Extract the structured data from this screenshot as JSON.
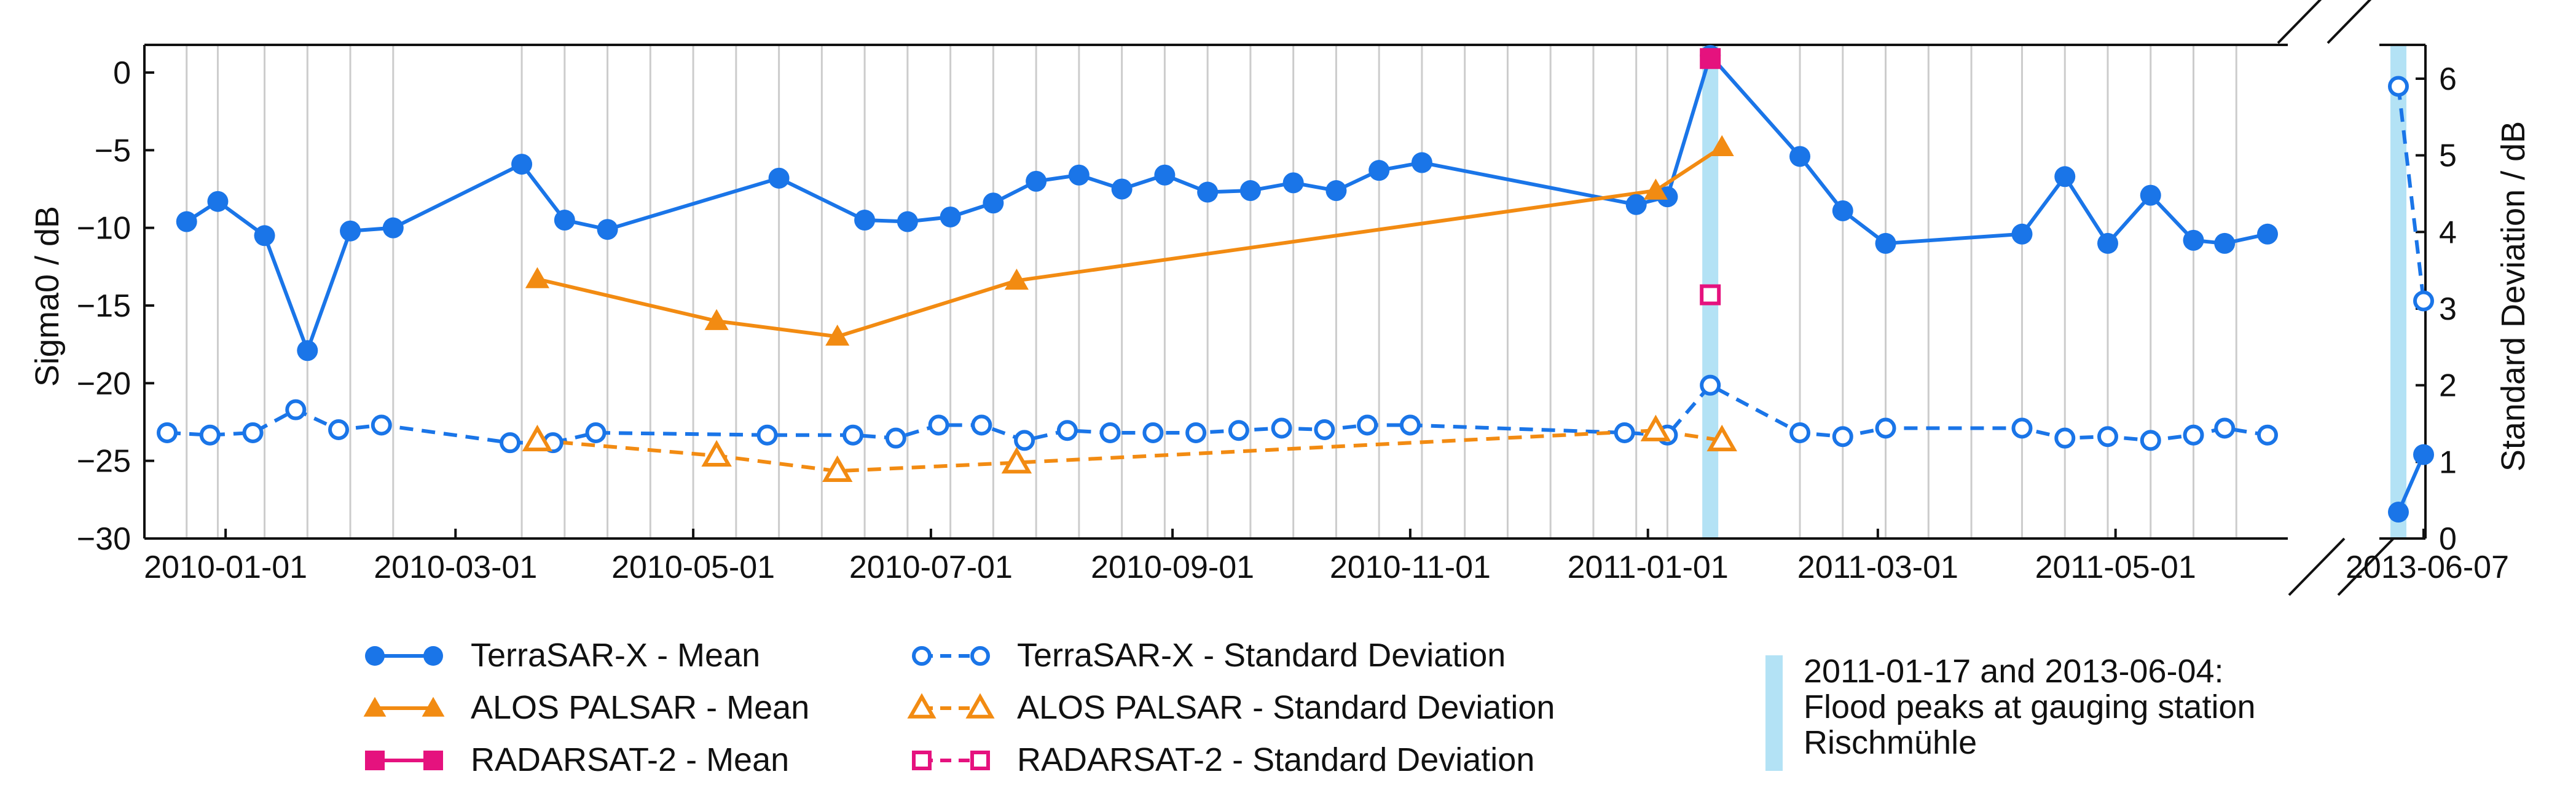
{
  "chart_data": {
    "type": "line",
    "title": "",
    "y_left_label": "Sigma0 / dB",
    "y_right_label": "Standard Deviation / dB",
    "y_left_lim": [
      -30,
      2
    ],
    "y_right_lim": [
      0,
      6.5
    ],
    "y_left_ticks": [
      "0",
      "−5",
      "−10",
      "−15",
      "−20",
      "−25",
      "−30"
    ],
    "y_left_tick_values": [
      0,
      -5,
      -10,
      -15,
      -20,
      -25,
      -30
    ],
    "y_right_ticks": [
      "0",
      "1",
      "2",
      "3",
      "4",
      "5",
      "6"
    ],
    "y_right_tick_values": [
      0,
      1,
      2,
      3,
      4,
      5,
      6
    ],
    "main_x_range": [
      "2009-12-17",
      "2011-06-09"
    ],
    "x_tick_labels": [
      "2010-01-01",
      "2010-03-01",
      "2010-05-01",
      "2010-07-01",
      "2010-09-01",
      "2010-11-01",
      "2011-01-01",
      "2011-03-01",
      "2011-05-01"
    ],
    "inset_x_range": [
      "2013-06-02",
      "2013-06-08"
    ],
    "inset_tick_label": "2013-06-07",
    "inset_tick_date": "2013-06-07",
    "series": [
      {
        "name": "TerraSAR-X - Mean",
        "axis": "left",
        "color": "#1a75e8",
        "marker": "circle-filled",
        "style": "solid",
        "points": [
          [
            "2009-12-22",
            -9.6
          ],
          [
            "2009-12-30",
            -8.3
          ],
          [
            "2010-01-11",
            -10.5
          ],
          [
            "2010-01-22",
            -17.9
          ],
          [
            "2010-02-02",
            -10.2
          ],
          [
            "2010-02-13",
            -10.0
          ],
          [
            "2010-03-18",
            -5.9
          ],
          [
            "2010-03-29",
            -9.5
          ],
          [
            "2010-04-09",
            -10.1
          ],
          [
            "2010-05-23",
            -6.8
          ],
          [
            "2010-06-14",
            -9.5
          ],
          [
            "2010-06-25",
            -9.6
          ],
          [
            "2010-07-06",
            -9.3
          ],
          [
            "2010-07-17",
            -8.4
          ],
          [
            "2010-07-28",
            -7.0
          ],
          [
            "2010-08-08",
            -6.6
          ],
          [
            "2010-08-19",
            -7.5
          ],
          [
            "2010-08-30",
            -6.6
          ],
          [
            "2010-09-10",
            -7.7
          ],
          [
            "2010-09-21",
            -7.6
          ],
          [
            "2010-10-02",
            -7.1
          ],
          [
            "2010-10-13",
            -7.6
          ],
          [
            "2010-10-24",
            -6.3
          ],
          [
            "2010-11-04",
            -5.8
          ],
          [
            "2010-12-29",
            -8.5
          ],
          [
            "2011-01-06",
            -8.0
          ],
          [
            "2011-01-17",
            1.1
          ],
          [
            "2011-02-09",
            -5.4
          ],
          [
            "2011-02-20",
            -8.9
          ],
          [
            "2011-03-03",
            -11.0
          ],
          [
            "2011-04-07",
            -10.4
          ],
          [
            "2011-04-18",
            -6.7
          ],
          [
            "2011-04-29",
            -11.0
          ],
          [
            "2011-05-10",
            -7.9
          ],
          [
            "2011-05-21",
            -10.8
          ],
          [
            "2011-05-29",
            -11.0
          ],
          [
            "2011-06-09",
            -10.4
          ]
        ],
        "inset_points": [
          [
            "2013-06-04",
            -28.3
          ],
          [
            "2013-06-07",
            -24.6
          ]
        ]
      },
      {
        "name": "TerraSAR-X - Standard Deviation",
        "axis": "right",
        "color": "#1a75e8",
        "marker": "circle-open",
        "style": "dashed",
        "points": [
          [
            "2009-12-17",
            1.38
          ],
          [
            "2009-12-28",
            1.35
          ],
          [
            "2010-01-08",
            1.38
          ],
          [
            "2010-01-19",
            1.68
          ],
          [
            "2010-01-30",
            1.42
          ],
          [
            "2010-02-10",
            1.48
          ],
          [
            "2010-03-15",
            1.25
          ],
          [
            "2010-03-26",
            1.25
          ],
          [
            "2010-04-06",
            1.38
          ],
          [
            "2010-05-20",
            1.35
          ],
          [
            "2010-06-11",
            1.35
          ],
          [
            "2010-06-22",
            1.31
          ],
          [
            "2010-07-03",
            1.48
          ],
          [
            "2010-07-14",
            1.48
          ],
          [
            "2010-07-25",
            1.28
          ],
          [
            "2010-08-05",
            1.41
          ],
          [
            "2010-08-16",
            1.38
          ],
          [
            "2010-08-27",
            1.38
          ],
          [
            "2010-09-07",
            1.38
          ],
          [
            "2010-09-18",
            1.41
          ],
          [
            "2010-09-29",
            1.44
          ],
          [
            "2010-10-10",
            1.42
          ],
          [
            "2010-10-21",
            1.48
          ],
          [
            "2010-11-01",
            1.48
          ],
          [
            "2010-12-26",
            1.38
          ],
          [
            "2011-01-06",
            1.35
          ],
          [
            "2011-01-17",
            2.0
          ],
          [
            "2011-02-09",
            1.38
          ],
          [
            "2011-02-20",
            1.33
          ],
          [
            "2011-03-03",
            1.44
          ],
          [
            "2011-04-07",
            1.44
          ],
          [
            "2011-04-18",
            1.31
          ],
          [
            "2011-04-29",
            1.33
          ],
          [
            "2011-05-10",
            1.28
          ],
          [
            "2011-05-21",
            1.35
          ],
          [
            "2011-05-29",
            1.44
          ],
          [
            "2011-06-09",
            1.35
          ]
        ],
        "inset_points": [
          [
            "2013-06-04",
            5.9
          ],
          [
            "2013-06-07",
            3.1
          ]
        ]
      },
      {
        "name": "ALOS PALSAR - Mean",
        "axis": "left",
        "color": "#f28b12",
        "marker": "triangle-filled",
        "style": "solid",
        "points": [
          [
            "2010-03-22",
            -13.3
          ],
          [
            "2010-05-07",
            -16.0
          ],
          [
            "2010-06-07",
            -17.0
          ],
          [
            "2010-07-23",
            -13.4
          ],
          [
            "2011-01-03",
            -7.6
          ],
          [
            "2011-01-20",
            -4.8
          ]
        ]
      },
      {
        "name": "ALOS PALSAR - Standard Deviation",
        "axis": "right",
        "color": "#f28b12",
        "marker": "triangle-open",
        "style": "dashed",
        "points": [
          [
            "2010-03-22",
            1.28
          ],
          [
            "2010-05-07",
            1.08
          ],
          [
            "2010-06-07",
            0.88
          ],
          [
            "2010-07-23",
            0.99
          ],
          [
            "2011-01-03",
            1.41
          ],
          [
            "2011-01-20",
            1.28
          ]
        ]
      },
      {
        "name": "RADARSAT-2 - Mean",
        "axis": "left",
        "color": "#e5127e",
        "marker": "square-filled",
        "style": "solid",
        "points": [
          [
            "2011-01-17",
            0.9
          ]
        ]
      },
      {
        "name": "RADARSAT-2 - Standard Deviation",
        "axis": "right",
        "color": "#e5127e",
        "marker": "square-open",
        "style": "dashed",
        "points": [
          [
            "2011-01-17",
            3.18
          ]
        ]
      }
    ],
    "acquisition_gridlines": [
      "2009-12-22",
      "2009-12-30",
      "2010-01-11",
      "2010-01-22",
      "2010-02-02",
      "2010-02-13",
      "2010-03-18",
      "2010-03-29",
      "2010-04-09",
      "2010-04-20",
      "2010-05-01",
      "2010-05-12",
      "2010-05-23",
      "2010-06-03",
      "2010-06-14",
      "2010-06-25",
      "2010-07-06",
      "2010-07-17",
      "2010-07-28",
      "2010-08-08",
      "2010-08-19",
      "2010-08-30",
      "2010-09-10",
      "2010-09-21",
      "2010-10-02",
      "2010-10-13",
      "2010-10-24",
      "2010-11-04",
      "2010-11-15",
      "2010-11-26",
      "2010-12-07",
      "2010-12-18",
      "2010-12-29",
      "2011-01-06",
      "2011-02-09",
      "2011-02-20",
      "2011-03-03",
      "2011-03-14",
      "2011-03-25",
      "2011-04-07",
      "2011-04-18",
      "2011-04-29",
      "2011-05-10",
      "2011-05-21",
      "2011-06-01"
    ],
    "flood_peaks": [
      "2011-01-17",
      "2013-06-04"
    ],
    "flood_color": "#b3e2f5",
    "flood_legend_label": "2011-01-17 and 2013-06-04: Flood peaks at gauging station Rischmühle",
    "legend_position": "bottom"
  }
}
